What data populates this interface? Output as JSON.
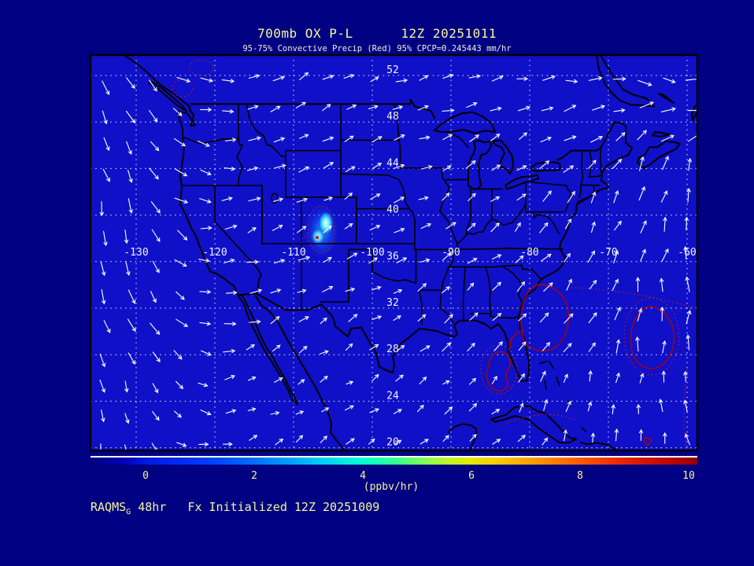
{
  "header": {
    "title": "700mb OX P-L      12Z 20251011",
    "subtitle": "95-75% Convective Precip (Red) 95% CPCP=0.245443 mm/hr"
  },
  "caption": {
    "model": "RAQMS",
    "model_subscript": "G",
    "text": " 48hr   Fx Initialized 12Z 20251009"
  },
  "map": {
    "lat_labels": [
      "52",
      "48",
      "44",
      "40",
      "36",
      "32",
      "28",
      "24",
      "20"
    ],
    "lon_labels": [
      "-130",
      "-120",
      "-110",
      "-100",
      "-90",
      "-80",
      "-70",
      "-60"
    ]
  },
  "colorbar": {
    "tick_labels": [
      "0",
      "2",
      "4",
      "6",
      "8",
      "10"
    ],
    "unit_label": "(ppbv/hr)"
  },
  "colors": {
    "page_background": "#000082",
    "map_background": "#0f10c8",
    "coastline": "#000000",
    "grid_and_vectors": "#ffffff",
    "annotation_text": "#f6f69e",
    "precip_contour_red": "#b00000"
  },
  "chart_data": {
    "type": "heatmap",
    "title": "700mb OX P-L",
    "valid_time": "12Z 20251011",
    "model": "RAQMS_G",
    "forecast_hour": "48hr",
    "init_time": "12Z 20251009",
    "subtitle": "95-75% Convective Precip (Red) 95% CPCP=0.245443 mm/hr",
    "cpcp_95pct_mm_hr": 0.245443,
    "colorbar": {
      "label": "(ppbv/hr)",
      "ticks": [
        0,
        2,
        4,
        6,
        8,
        10
      ],
      "min": 0,
      "max": 10
    },
    "lat_ticks": [
      52,
      48,
      44,
      40,
      36,
      32,
      28,
      24,
      20
    ],
    "lon_ticks": [
      -130,
      -120,
      -110,
      -100,
      -90,
      -80,
      -70,
      -60
    ],
    "projection": "equidistant cylindrical, lon -136..-58, lat 19..53",
    "ox_pl_maxima": [
      {
        "lon": -106.2,
        "lat": 38.9,
        "value_ppbv_hr": 4.5
      },
      {
        "lon": -106.6,
        "lat": 37.6,
        "value_ppbv_hr": 3.5
      }
    ],
    "wind_field_summary": "700mb wind vectors (white): southerly offshore Pacific, northeasterly over Rockies/plains, northerly over western Atlantic, southeasterly far northeast",
    "precip_contours_summary": "red 95-75% convective precip: dotted cells over Pacific Northwest and Colorado hotspot; solid cells off Georgia/Florida Atlantic coast and western Atlantic"
  }
}
